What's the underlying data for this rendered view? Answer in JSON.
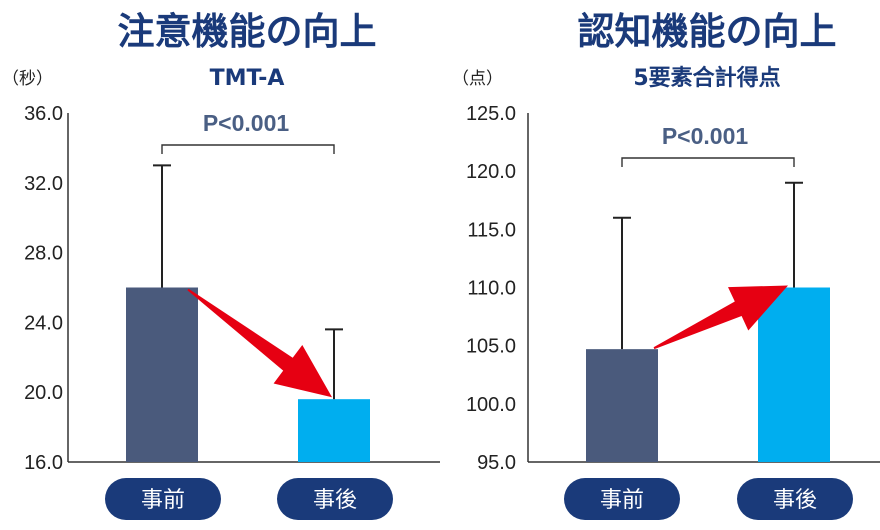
{
  "colors": {
    "title": "#1a3a7a",
    "before_bar": "#4a5a7c",
    "after_bar": "#00aeef",
    "arrow": "#e60012",
    "pill": "#1a3a7a",
    "pvalue": "#4a5f84"
  },
  "chart_data": [
    {
      "type": "bar",
      "title": "注意機能の向上",
      "subtitle": "TMT-A",
      "unit": "（秒）",
      "categories": [
        "事前",
        "事後"
      ],
      "values": [
        26.0,
        19.6
      ],
      "error_upper": [
        33.0,
        23.6
      ],
      "ylim": [
        16.0,
        36.0
      ],
      "yticks": [
        "36.0",
        "32.0",
        "28.0",
        "24.0",
        "20.0",
        "16.0"
      ],
      "significance": "P<0.001",
      "arrow": "down"
    },
    {
      "type": "bar",
      "title": "認知機能の向上",
      "subtitle": "5要素合計得点",
      "unit": "（点）",
      "categories": [
        "事前",
        "事後"
      ],
      "values": [
        104.7,
        110.0
      ],
      "error_upper": [
        116.0,
        119.0
      ],
      "ylim": [
        95.0,
        125.0
      ],
      "yticks": [
        "125.0",
        "120.0",
        "115.0",
        "110.0",
        "105.0",
        "100.0",
        "95.0"
      ],
      "significance": "P<0.001",
      "arrow": "up"
    }
  ]
}
